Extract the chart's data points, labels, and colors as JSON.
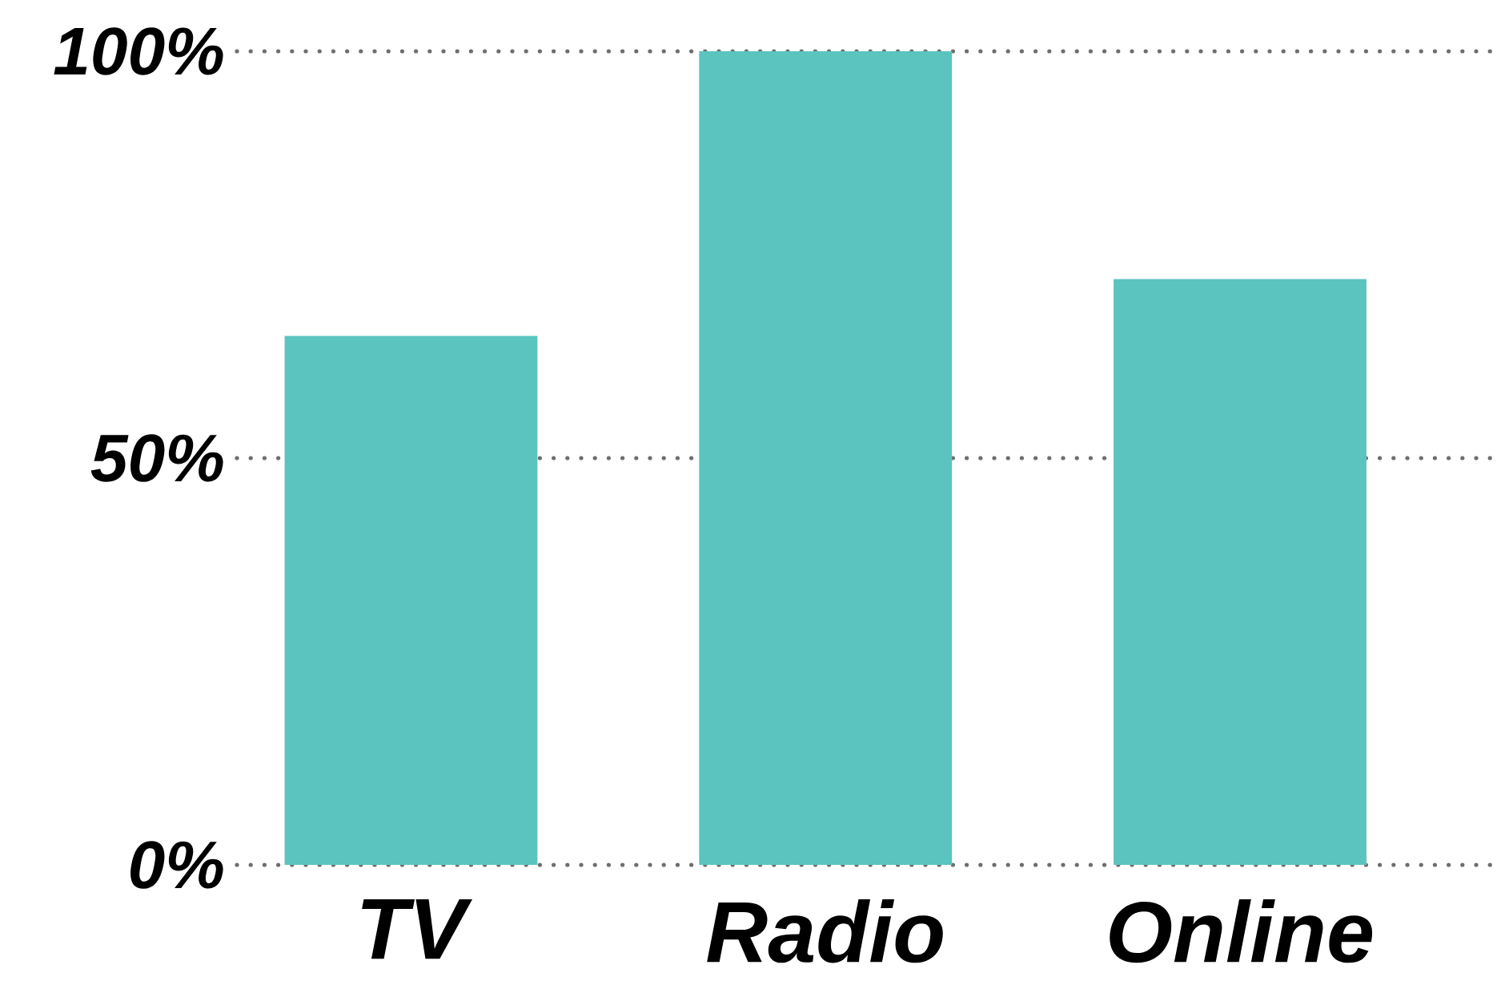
{
  "chart_data": {
    "type": "bar",
    "categories": [
      "TV",
      "Radio",
      "Online"
    ],
    "values": [
      65,
      100,
      72
    ],
    "color": "#5bc4bf",
    "ylim": [
      0,
      100
    ],
    "yticks": [
      {
        "value": 0,
        "label": "0%"
      },
      {
        "value": 50,
        "label": "50%"
      },
      {
        "value": 100,
        "label": "100%"
      }
    ],
    "grid": "y"
  }
}
